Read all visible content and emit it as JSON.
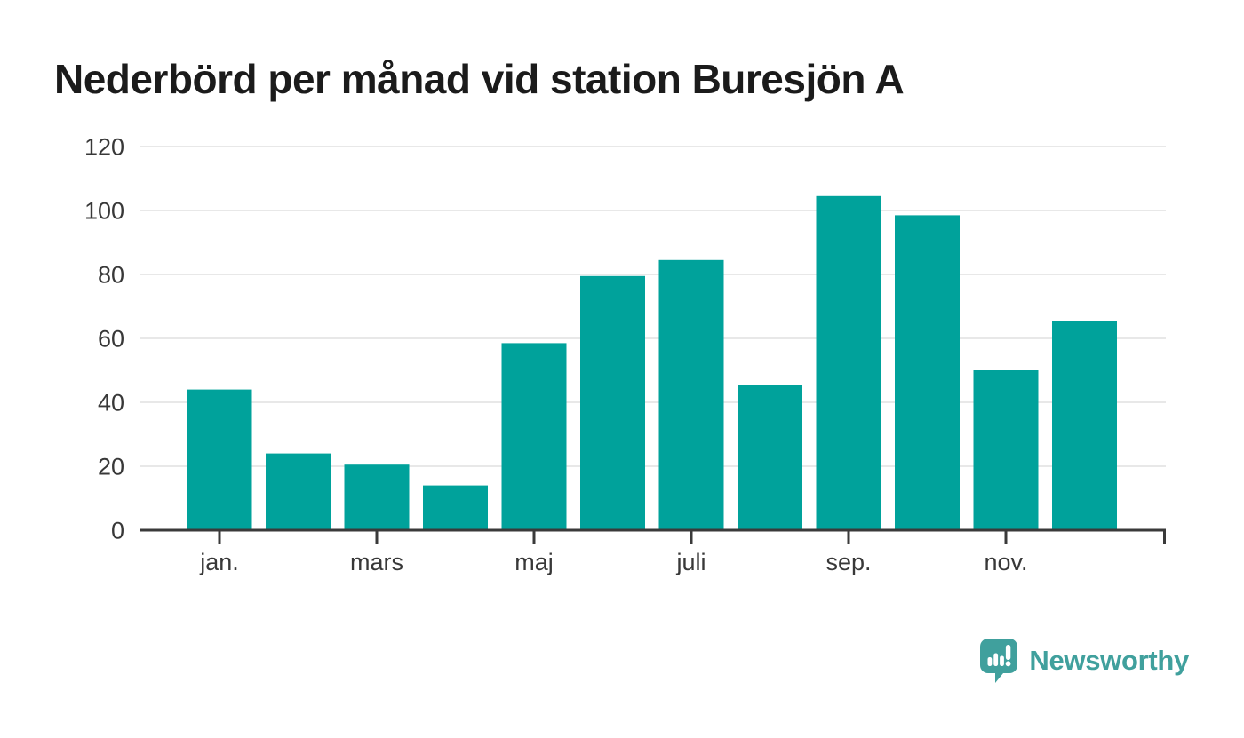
{
  "header": {
    "title": "Nederbörd per månad vid station Buresjön A"
  },
  "chart_data": {
    "type": "bar",
    "title": "Nederbörd per månad vid station Buresjön A",
    "n_bars": 12,
    "values": [
      44,
      24,
      20.5,
      14,
      58.5,
      79.5,
      84.5,
      45.5,
      104.5,
      98.5,
      50,
      65.5
    ],
    "x_tick_labels": [
      "jan.",
      "mars",
      "maj",
      "juli",
      "sep.",
      "nov."
    ],
    "x_tick_indices": [
      0,
      2,
      4,
      6,
      8,
      10
    ],
    "yticks": [
      0,
      20,
      40,
      60,
      80,
      100,
      120
    ],
    "ylim": [
      0,
      120
    ],
    "xlabel": "",
    "ylabel": "",
    "grid": true,
    "legend": "none",
    "bar_color": "#00A29B"
  },
  "colors": {
    "background": "#ffffff",
    "bar": "#00A29B",
    "gridline": "#e8e8e8",
    "axis": "#3a3a3a",
    "tick_text": "#383838",
    "title_text": "#1b1b1b",
    "brand": "#40A09D"
  },
  "branding": {
    "logo_text": "Newsworthy",
    "logo_icon": "bar-chart-speech-bubble-icon"
  }
}
